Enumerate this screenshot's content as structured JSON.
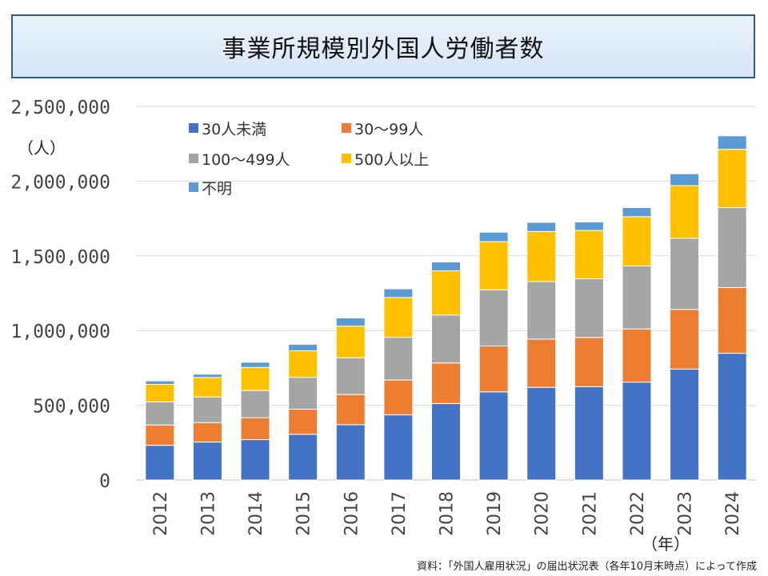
{
  "title": "事業所規模別外国人労働者数",
  "source_note": "資料：「外国人雇用状況」の届出状況表（各年10月末時点）によって作成",
  "chart_data": {
    "type": "bar",
    "stacked": true,
    "title": "事業所規模別外国人労働者数",
    "ylabel": "（人）",
    "xlabel": "（年）",
    "ylim": [
      0,
      2500000
    ],
    "yticks": [
      0,
      500000,
      1000000,
      1500000,
      2000000,
      2500000
    ],
    "ytick_labels": [
      "0",
      "500,000",
      "1,000,000",
      "1,500,000",
      "2,000,000",
      "2,500,000"
    ],
    "grid": true,
    "legend_position": "top-left",
    "categories": [
      "2012",
      "2013",
      "2014",
      "2015",
      "2016",
      "2017",
      "2018",
      "2019",
      "2020",
      "2021",
      "2022",
      "2023",
      "2024"
    ],
    "series": [
      {
        "name": "30人未満",
        "color": "#4472c4",
        "values": [
          232000,
          254000,
          270000,
          306000,
          370000,
          436000,
          512000,
          590000,
          620000,
          625000,
          655000,
          742000,
          848000
        ]
      },
      {
        "name": "30〜99人",
        "color": "#ed7d31",
        "values": [
          136000,
          130000,
          147000,
          168000,
          202000,
          233000,
          271000,
          307000,
          323000,
          329000,
          356000,
          400000,
          440000
        ]
      },
      {
        "name": "100〜499人",
        "color": "#a5a5a5",
        "values": [
          155000,
          172000,
          182000,
          213000,
          246000,
          286000,
          321000,
          376000,
          385000,
          393000,
          421000,
          476000,
          535000
        ]
      },
      {
        "name": "500人以上",
        "color": "#ffc000",
        "values": [
          117000,
          130000,
          154000,
          178000,
          212000,
          266000,
          296000,
          322000,
          335000,
          323000,
          330000,
          352000,
          390000
        ]
      },
      {
        "name": "不明",
        "color": "#5b9bd5",
        "values": [
          23000,
          22000,
          35000,
          43000,
          54000,
          58000,
          59000,
          63000,
          61000,
          57000,
          61000,
          79000,
          90000
        ]
      }
    ]
  }
}
